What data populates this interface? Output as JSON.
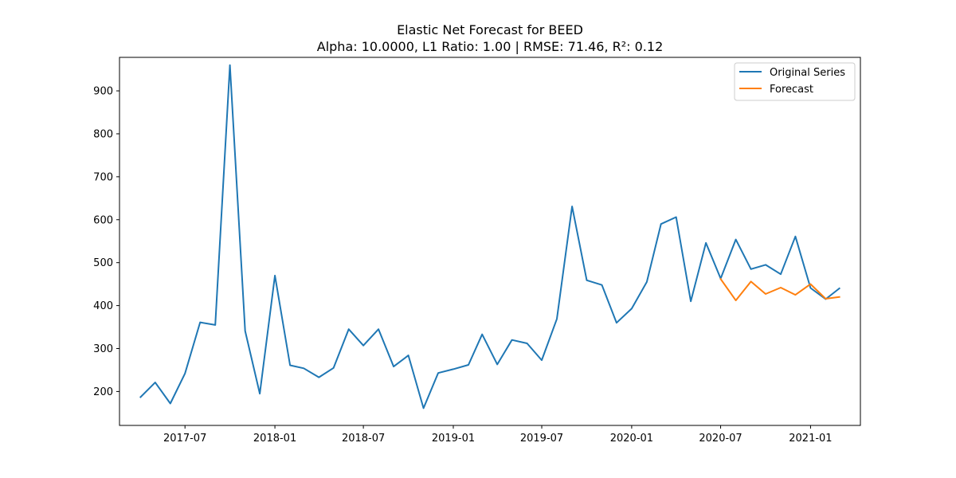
{
  "chart_data": {
    "type": "line",
    "title": "Elastic Net Forecast for BEED",
    "subtitle": "Alpha: 10.0000, L1 Ratio: 1.00 | RMSE: 71.46, R²: 0.12",
    "xlabel": "",
    "ylabel": "",
    "xlim": [
      "2017-02-17",
      "2021-04-13"
    ],
    "ylim": [
      121,
      978
    ],
    "x_ticks": [
      "2017-07",
      "2018-01",
      "2018-07",
      "2019-01",
      "2019-07",
      "2020-01",
      "2020-07",
      "2021-01"
    ],
    "y_ticks": [
      200,
      300,
      400,
      500,
      600,
      700,
      800,
      900
    ],
    "grid": false,
    "legend": "top-right",
    "series": [
      {
        "name": "Original Series",
        "color": "#1f77b4",
        "x": [
          "2017-04-01",
          "2017-05-01",
          "2017-06-01",
          "2017-07-01",
          "2017-08-01",
          "2017-09-01",
          "2017-10-01",
          "2017-11-01",
          "2017-12-01",
          "2018-01-01",
          "2018-02-01",
          "2018-03-01",
          "2018-04-01",
          "2018-05-01",
          "2018-06-01",
          "2018-07-01",
          "2018-08-01",
          "2018-09-01",
          "2018-10-01",
          "2018-11-01",
          "2018-12-01",
          "2019-01-01",
          "2019-02-01",
          "2019-03-01",
          "2019-04-01",
          "2019-05-01",
          "2019-06-01",
          "2019-07-01",
          "2019-08-01",
          "2019-09-01",
          "2019-10-01",
          "2019-11-01",
          "2019-12-01",
          "2020-01-01",
          "2020-02-01",
          "2020-03-01",
          "2020-04-01",
          "2020-05-01",
          "2020-06-01",
          "2020-07-01",
          "2020-08-01",
          "2020-09-01",
          "2020-10-01",
          "2020-11-01",
          "2020-12-01",
          "2021-01-01",
          "2021-02-01",
          "2021-03-01"
        ],
        "values": [
          187,
          221,
          172,
          242,
          361,
          355,
          960,
          341,
          195,
          470,
          261,
          254,
          233,
          255,
          345,
          307,
          345,
          258,
          284,
          161,
          243,
          252,
          262,
          333,
          263,
          320,
          312,
          273,
          369,
          631,
          459,
          448,
          360,
          393,
          455,
          590,
          606,
          410,
          546,
          463,
          554,
          485,
          495,
          473,
          561,
          441,
          415,
          440
        ]
      },
      {
        "name": "Forecast",
        "color": "#ff7f0e",
        "x": [
          "2020-07-01",
          "2020-08-01",
          "2020-09-01",
          "2020-10-01",
          "2020-11-01",
          "2020-12-01",
          "2021-01-01",
          "2021-02-01",
          "2021-03-01"
        ],
        "values": [
          462,
          412,
          456,
          427,
          442,
          425,
          450,
          416,
          420
        ]
      }
    ]
  }
}
